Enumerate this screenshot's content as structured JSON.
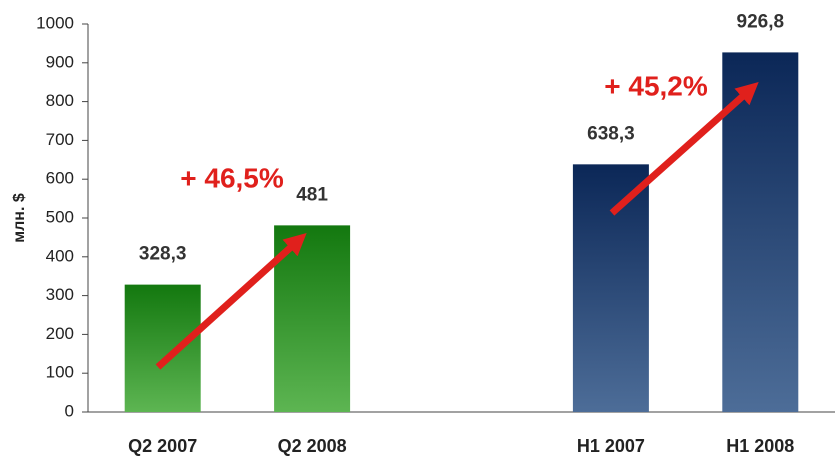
{
  "chart_data": {
    "type": "bar",
    "y_label": "млн. $",
    "categories": [
      "Q2 2007",
      "Q2 2008",
      null,
      "H1 2007",
      "H1 2008"
    ],
    "values": [
      328.3,
      481,
      null,
      638.3,
      926.8
    ],
    "value_labels": [
      "328,3",
      "481",
      null,
      "638,3",
      "926,8"
    ],
    "colors": [
      [
        "#13780f",
        "#5db552"
      ],
      [
        "#13780f",
        "#5db552"
      ],
      null,
      [
        "#0b2757",
        "#4d6d98"
      ],
      [
        "#0b2757",
        "#4d6d98"
      ]
    ],
    "annotations": [
      "+ 46,5%",
      "+ 45,2%"
    ],
    "annotation_color": "#e0201c",
    "ylim": [
      0,
      1000
    ],
    "yticks": [
      0,
      100,
      200,
      300,
      400,
      500,
      600,
      700,
      800,
      900,
      1000
    ],
    "grid": false
  }
}
